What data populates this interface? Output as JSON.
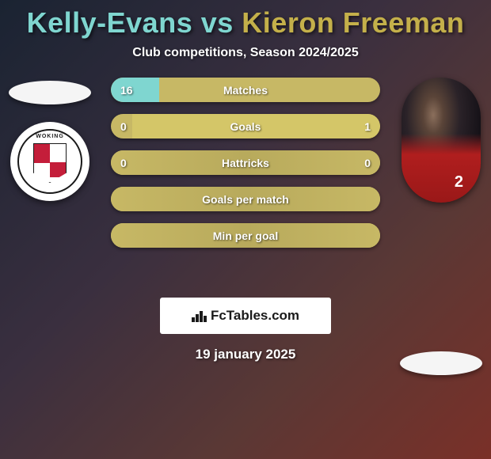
{
  "title": {
    "player1": "Kelly-Evans",
    "vs": "vs",
    "player2": "Kieron Freeman",
    "player1_color": "#7fd6d0",
    "player2_color": "#c4b04a"
  },
  "subtitle": "Club competitions, Season 2024/2025",
  "left": {
    "club_name": "WOKING",
    "shield_primary": "#c41e3a"
  },
  "right": {
    "player_number": "2",
    "jersey_color": "#b01e1e"
  },
  "bars": {
    "base_color": "#c7b865",
    "mid_color": "#b8aa5c",
    "player1_color": "#7fd6d0",
    "player2_color": "#d4c668",
    "items": [
      {
        "label": "Matches",
        "left": "16",
        "right": "",
        "left_pct": 18,
        "right_pct": 0
      },
      {
        "label": "Goals",
        "left": "0",
        "right": "1",
        "left_pct": 0,
        "right_pct": 92
      },
      {
        "label": "Hattricks",
        "left": "0",
        "right": "0",
        "left_pct": 0,
        "right_pct": 0
      },
      {
        "label": "Goals per match",
        "left": "",
        "right": "",
        "left_pct": 0,
        "right_pct": 0
      },
      {
        "label": "Min per goal",
        "left": "",
        "right": "",
        "left_pct": 0,
        "right_pct": 0
      }
    ]
  },
  "watermark": "FcTables.com",
  "date": "19 january 2025"
}
